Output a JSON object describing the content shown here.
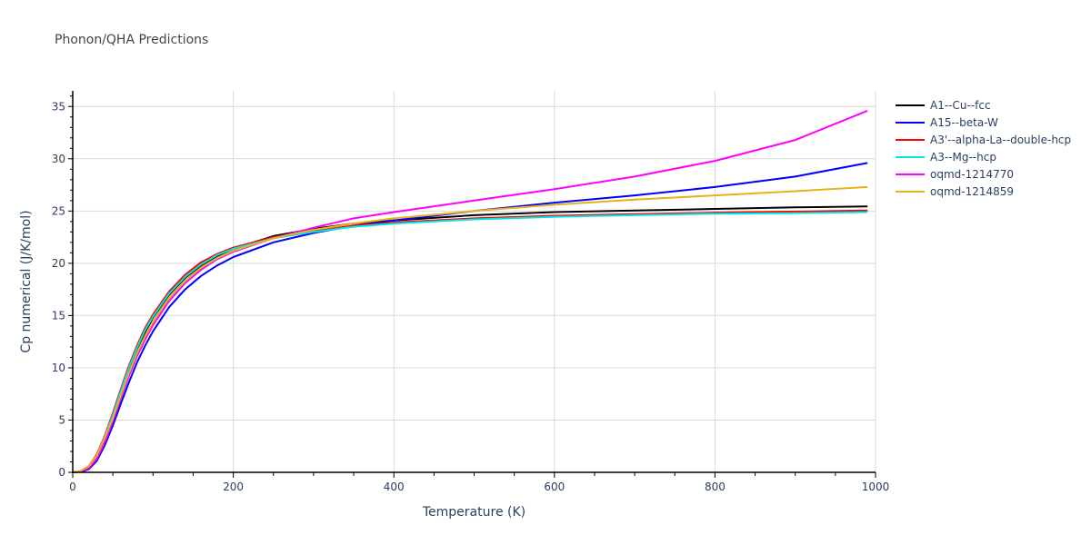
{
  "chart_data": {
    "type": "line",
    "title": "Phonon/QHA Predictions",
    "xlabel": "Temperature (K)",
    "ylabel": "Cp numerical (J/K/mol)",
    "xlim": [
      0,
      1000
    ],
    "ylim": [
      0,
      36.5
    ],
    "xticks": [
      0,
      200,
      400,
      600,
      800,
      1000
    ],
    "yticks": [
      0,
      5,
      10,
      15,
      20,
      25,
      30,
      35
    ],
    "grid": true,
    "legend_position": "right",
    "x": [
      0,
      10,
      20,
      30,
      40,
      50,
      60,
      70,
      80,
      90,
      100,
      120,
      140,
      160,
      180,
      200,
      250,
      300,
      350,
      400,
      500,
      600,
      700,
      800,
      900,
      990
    ],
    "series": [
      {
        "name": "A1--Cu--fcc",
        "color": "#000000",
        "values": [
          0,
          0.1,
          0.5,
          1.5,
          3.2,
          5.3,
          7.6,
          9.8,
          11.8,
          13.4,
          14.8,
          17.0,
          18.6,
          19.8,
          20.7,
          21.4,
          22.6,
          23.3,
          23.8,
          24.1,
          24.6,
          24.9,
          25.05,
          25.2,
          25.35,
          25.45
        ]
      },
      {
        "name": "A15--beta-W",
        "color": "#0000ff",
        "values": [
          0,
          0.05,
          0.3,
          1.1,
          2.6,
          4.5,
          6.6,
          8.6,
          10.5,
          12.1,
          13.5,
          15.8,
          17.5,
          18.8,
          19.8,
          20.6,
          22.0,
          22.9,
          23.6,
          24.1,
          25.0,
          25.8,
          26.5,
          27.3,
          28.3,
          29.6
        ]
      },
      {
        "name": "A3'--alpha-La--double-hcp",
        "color": "#ff0000",
        "values": [
          0,
          0.1,
          0.6,
          1.7,
          3.5,
          5.7,
          8.0,
          10.2,
          12.1,
          13.8,
          15.1,
          17.3,
          18.9,
          20.1,
          20.9,
          21.5,
          22.5,
          23.1,
          23.6,
          23.9,
          24.3,
          24.55,
          24.7,
          24.85,
          24.95,
          25.05
        ]
      },
      {
        "name": "A3--Mg--hcp",
        "color": "#00e5e5",
        "values": [
          0,
          0.1,
          0.55,
          1.6,
          3.4,
          5.5,
          7.8,
          10.0,
          11.9,
          13.6,
          14.9,
          17.1,
          18.7,
          19.9,
          20.8,
          21.4,
          22.4,
          23.0,
          23.5,
          23.8,
          24.2,
          24.45,
          24.6,
          24.75,
          24.8,
          24.9
        ]
      },
      {
        "name": "oqmd-1214770",
        "color": "#ff00ff",
        "values": [
          0,
          0.1,
          0.4,
          1.3,
          2.9,
          4.9,
          7.1,
          9.2,
          11.1,
          12.7,
          14.1,
          16.4,
          18.1,
          19.4,
          20.4,
          21.1,
          22.4,
          23.4,
          24.3,
          24.9,
          26.0,
          27.1,
          28.3,
          29.8,
          31.8,
          34.6
        ]
      },
      {
        "name": "oqmd-1214859",
        "color": "#e6b319",
        "values": [
          0,
          0.15,
          0.6,
          1.6,
          3.3,
          5.2,
          7.4,
          9.5,
          11.4,
          13.0,
          14.4,
          16.7,
          18.3,
          19.6,
          20.5,
          21.2,
          22.4,
          23.2,
          23.8,
          24.3,
          25.0,
          25.6,
          26.1,
          26.5,
          26.9,
          27.3
        ]
      }
    ]
  }
}
